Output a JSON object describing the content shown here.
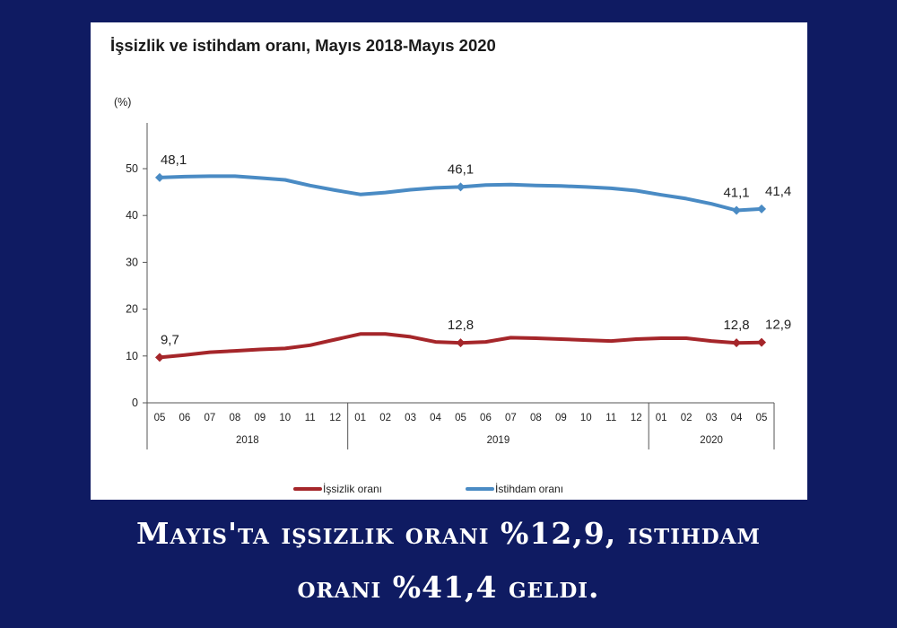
{
  "caption": {
    "line1": "Mayıs'ta işsizlik oranı %12,9, istihdam",
    "line2": "oranı %41,4 geldi."
  },
  "chart_data": {
    "type": "line",
    "title": "İşsizlik ve istihdam oranı, Mayıs 2018-Mayıs 2020",
    "ylabel": "(%)",
    "ylim": [
      0,
      50
    ],
    "yticks": [
      0,
      10,
      20,
      30,
      40,
      50
    ],
    "grid": false,
    "legend_position": "bottom",
    "categories": [
      "05",
      "06",
      "07",
      "08",
      "09",
      "10",
      "11",
      "12",
      "01",
      "02",
      "03",
      "04",
      "05",
      "06",
      "07",
      "08",
      "09",
      "10",
      "11",
      "12",
      "01",
      "02",
      "03",
      "04",
      "05"
    ],
    "year_groups": [
      {
        "label": "2018",
        "start": 0,
        "end": 7
      },
      {
        "label": "2019",
        "start": 8,
        "end": 19
      },
      {
        "label": "2020",
        "start": 20,
        "end": 24
      }
    ],
    "series": [
      {
        "name": "İşsizlik oranı",
        "color": "#a5262a",
        "values": [
          9.7,
          10.2,
          10.8,
          11.1,
          11.4,
          11.6,
          12.3,
          13.5,
          14.7,
          14.7,
          14.1,
          13.0,
          12.8,
          13.0,
          13.9,
          13.8,
          13.6,
          13.4,
          13.2,
          13.6,
          13.8,
          13.8,
          13.2,
          12.8,
          12.9
        ],
        "labels": [
          {
            "index": 0,
            "text": "9,7"
          },
          {
            "index": 12,
            "text": "12,8"
          },
          {
            "index": 23,
            "text": "12,8"
          },
          {
            "index": 24,
            "text": "12,9"
          }
        ]
      },
      {
        "name": "İstihdam oranı",
        "color": "#4a8bc4",
        "values": [
          48.1,
          48.3,
          48.4,
          48.4,
          48.0,
          47.6,
          46.4,
          45.4,
          44.5,
          44.9,
          45.5,
          45.9,
          46.1,
          46.5,
          46.6,
          46.4,
          46.3,
          46.1,
          45.8,
          45.3,
          44.4,
          43.6,
          42.5,
          41.1,
          41.4
        ],
        "labels": [
          {
            "index": 0,
            "text": "48,1"
          },
          {
            "index": 12,
            "text": "46,1"
          },
          {
            "index": 23,
            "text": "41,1"
          },
          {
            "index": 24,
            "text": "41,4"
          }
        ]
      }
    ]
  }
}
